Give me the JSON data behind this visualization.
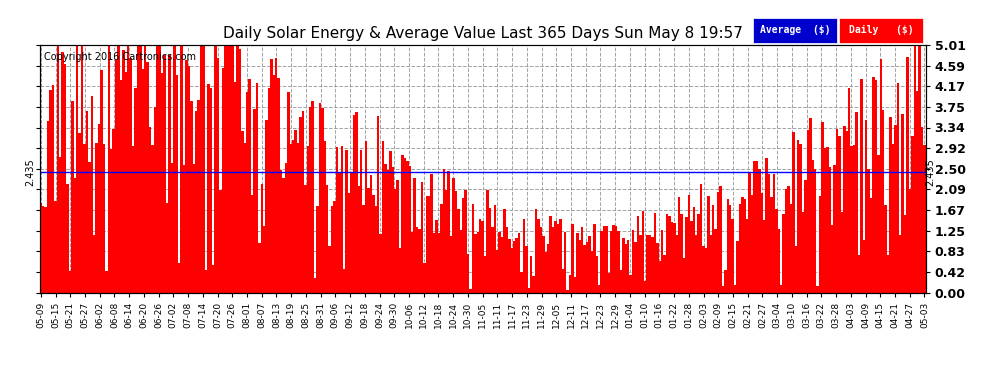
{
  "title": "Daily Solar Energy & Average Value Last 365 Days Sun May 8 19:57",
  "copyright": "Copyright 2016 Cartronics.com",
  "average_value": 2.435,
  "average_label": "2.435",
  "bar_color": "#ff0000",
  "average_line_color": "#0000ff",
  "background_color": "#ffffff",
  "plot_bg_color": "#ffffff",
  "ylim": [
    0.0,
    5.01
  ],
  "yticks": [
    0.0,
    0.42,
    0.83,
    1.25,
    1.67,
    2.09,
    2.5,
    2.92,
    3.34,
    3.75,
    4.17,
    4.59,
    5.01
  ],
  "legend_avg_bg": "#0000cc",
  "legend_daily_bg": "#cc0000",
  "legend_avg_text": "Average  ($)",
  "legend_daily_text": "Daily   ($)",
  "x_labels": [
    "05-09",
    "05-15",
    "05-21",
    "05-27",
    "06-02",
    "06-08",
    "06-14",
    "06-20",
    "06-26",
    "07-02",
    "07-08",
    "07-14",
    "07-20",
    "07-26",
    "08-01",
    "08-07",
    "08-13",
    "08-19",
    "08-25",
    "08-31",
    "09-06",
    "09-12",
    "09-18",
    "09-24",
    "09-30",
    "10-06",
    "10-12",
    "10-18",
    "10-24",
    "10-30",
    "11-05",
    "11-11",
    "11-17",
    "11-23",
    "11-29",
    "12-05",
    "12-11",
    "12-17",
    "12-23",
    "12-29",
    "01-04",
    "01-10",
    "01-16",
    "01-22",
    "01-28",
    "02-03",
    "02-09",
    "02-15",
    "02-21",
    "02-27",
    "03-04",
    "03-10",
    "03-16",
    "03-22",
    "03-28",
    "04-03",
    "04-09",
    "04-15",
    "04-21",
    "04-27",
    "05-03"
  ],
  "num_bars": 365,
  "grid_color": "#999999",
  "grid_linestyle": "--"
}
